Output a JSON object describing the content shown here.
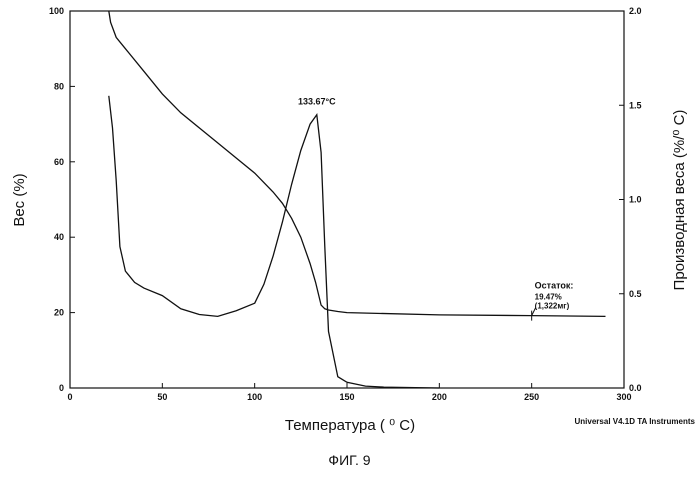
{
  "chart_data": {
    "type": "line",
    "xlabel": "Температура ( ⁰ С)",
    "ylabel": "Вес  (%)",
    "ylabel_right": "Производная веса (%/⁰ С)",
    "xlim": [
      0,
      300
    ],
    "ylim": [
      0,
      100
    ],
    "ylim_right": [
      0,
      2.0
    ],
    "x_ticks": [
      0,
      50,
      100,
      150,
      200,
      250,
      300
    ],
    "x_tick_labels": [
      "0",
      "50",
      "100",
      "150",
      "200",
      "250",
      "300"
    ],
    "y_ticks": [
      0,
      20,
      40,
      60,
      80,
      100
    ],
    "y_tick_labels": [
      "0",
      "20",
      "40",
      "60",
      "80",
      "100"
    ],
    "y_right_ticks": [
      0,
      0.5,
      1.0,
      1.5,
      2.0
    ],
    "y_right_tick_labels": [
      "0.0",
      "0.5",
      "1.0",
      "1.5",
      "2.0"
    ],
    "grid": false,
    "series": [
      {
        "axis": "left",
        "x": [
          21,
          22,
          25,
          30,
          40,
          50,
          60,
          70,
          80,
          90,
          100,
          110,
          115,
          120,
          125,
          130,
          133,
          136,
          138,
          140,
          145,
          150,
          200,
          250,
          290
        ],
        "y": [
          100,
          97,
          93,
          90,
          84,
          78,
          73,
          69,
          65,
          61,
          57,
          52,
          49,
          45,
          40,
          33,
          28,
          22,
          21,
          20.7,
          20.3,
          20.0,
          19.4,
          19.2,
          19.0
        ]
      },
      {
        "axis": "right",
        "x": [
          21,
          23,
          25,
          27,
          30,
          35,
          40,
          50,
          60,
          70,
          80,
          90,
          100,
          105,
          110,
          115,
          120,
          125,
          130,
          133.67,
          136,
          138,
          140,
          145,
          150,
          160,
          170,
          200
        ],
        "y": [
          1.55,
          1.38,
          1.1,
          0.75,
          0.62,
          0.56,
          0.53,
          0.49,
          0.42,
          0.39,
          0.38,
          0.41,
          0.45,
          0.55,
          0.7,
          0.88,
          1.08,
          1.26,
          1.4,
          1.45,
          1.25,
          0.75,
          0.3,
          0.06,
          0.03,
          0.01,
          0.005,
          0.0
        ]
      }
    ],
    "annotations": {
      "peak_label": "133.67°C",
      "peak_x": 133.67,
      "peak_y_right": 1.45,
      "residue_label": "Остаток:",
      "residue_percent": "19.47%",
      "residue_mass": "(1,322мг)",
      "residue_x": 250,
      "residue_y": 19.2
    },
    "instrument_label": "Universal V4.1D TA Instruments"
  },
  "figure": {
    "caption": "ФИГ. 9"
  }
}
